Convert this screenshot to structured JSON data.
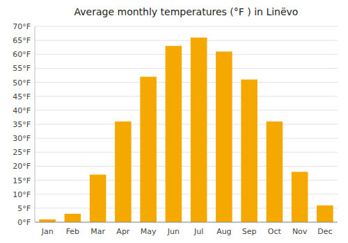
{
  "chart_data": {
    "type": "bar",
    "title": "Average monthly temperatures (°F ) in Linëvo",
    "categories": [
      "Jan",
      "Feb",
      "Mar",
      "Apr",
      "May",
      "Jun",
      "Jul",
      "Aug",
      "Sep",
      "Oct",
      "Nov",
      "Dec"
    ],
    "values": [
      1,
      3,
      17,
      36,
      52,
      63,
      66,
      61,
      51,
      36,
      18,
      6
    ],
    "color": "#F5A800",
    "ylim": [
      0,
      70
    ],
    "yticks": [
      {
        "value": 0,
        "label": "0°F"
      },
      {
        "value": 5,
        "label": "5°F"
      },
      {
        "value": 10,
        "label": "10°F"
      },
      {
        "value": 15,
        "label": "15°F"
      },
      {
        "value": 20,
        "label": "20°F"
      },
      {
        "value": 25,
        "label": "25°F"
      },
      {
        "value": 30,
        "label": "30°F"
      },
      {
        "value": 35,
        "label": "35°F"
      },
      {
        "value": 40,
        "label": "40°F"
      },
      {
        "value": 45,
        "label": "45°F"
      },
      {
        "value": 50,
        "label": "50°F"
      },
      {
        "value": 55,
        "label": "55°F"
      },
      {
        "value": 60,
        "label": "60°F"
      },
      {
        "value": 65,
        "label": "65°F"
      },
      {
        "value": 70,
        "label": "70°F"
      }
    ],
    "grid": true
  }
}
